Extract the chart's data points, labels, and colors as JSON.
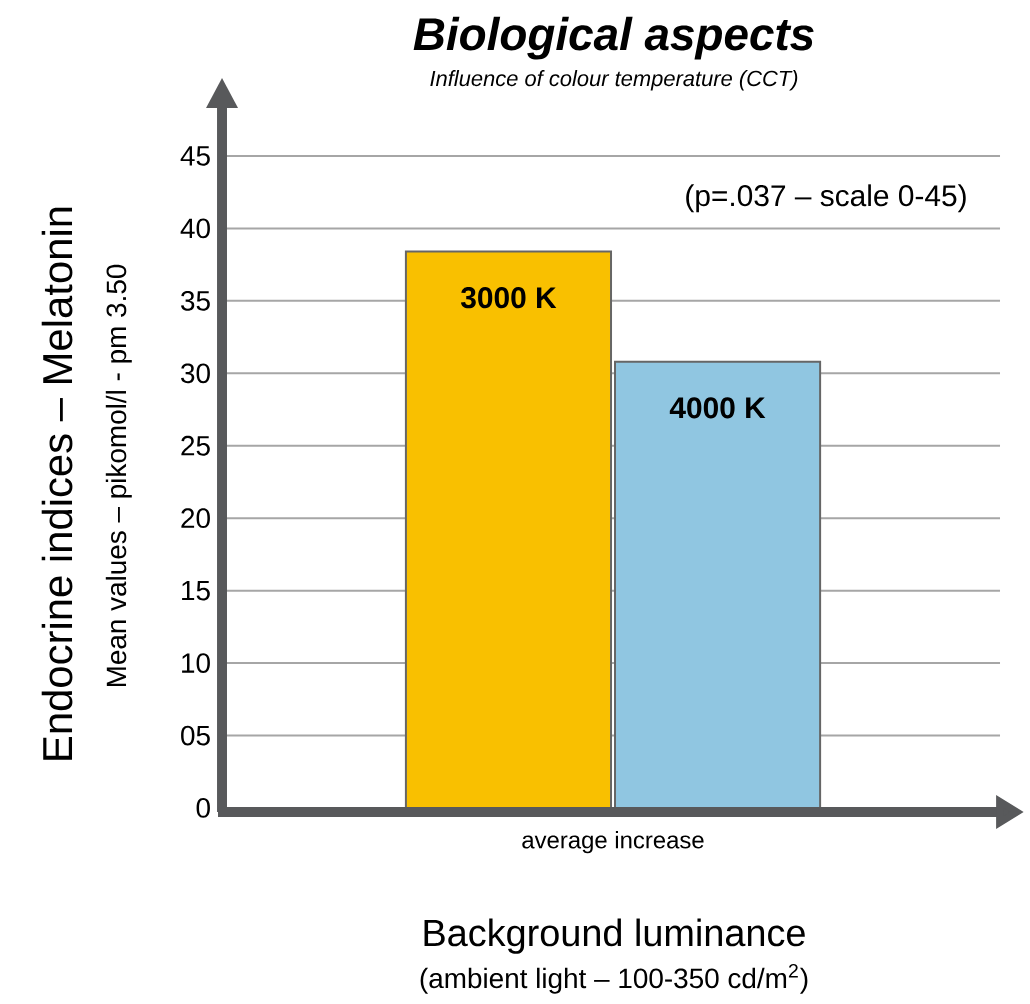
{
  "chart_data": {
    "type": "bar",
    "title": "Biological aspects",
    "subtitle": "Influence of colour temperature (CCT)",
    "xlabel": "Background luminance",
    "ylabel": "Endocrine indices – Melatonin",
    "annotations": [
      "Mean values – pikomol/l - pm 3.50",
      "(ambient light – 100-350 cd/m$^{2}$)",
      "(p=.037 – scale 0-45)"
    ],
    "categories": [
      "average increase"
    ],
    "series": [
      {
        "name": "3000 K",
        "color": "#f9c000",
        "values": [
          38.4
        ]
      },
      {
        "name": "4000 K",
        "color": "#90c6e1",
        "values": [
          30.8
        ]
      }
    ],
    "ylim": [
      0,
      45
    ],
    "yticks": [
      0,
      {
        "value": 5,
        "label": "05"
      },
      10,
      15,
      20,
      25,
      30,
      35,
      40,
      45
    ],
    "grid": "y",
    "legend": false
  }
}
